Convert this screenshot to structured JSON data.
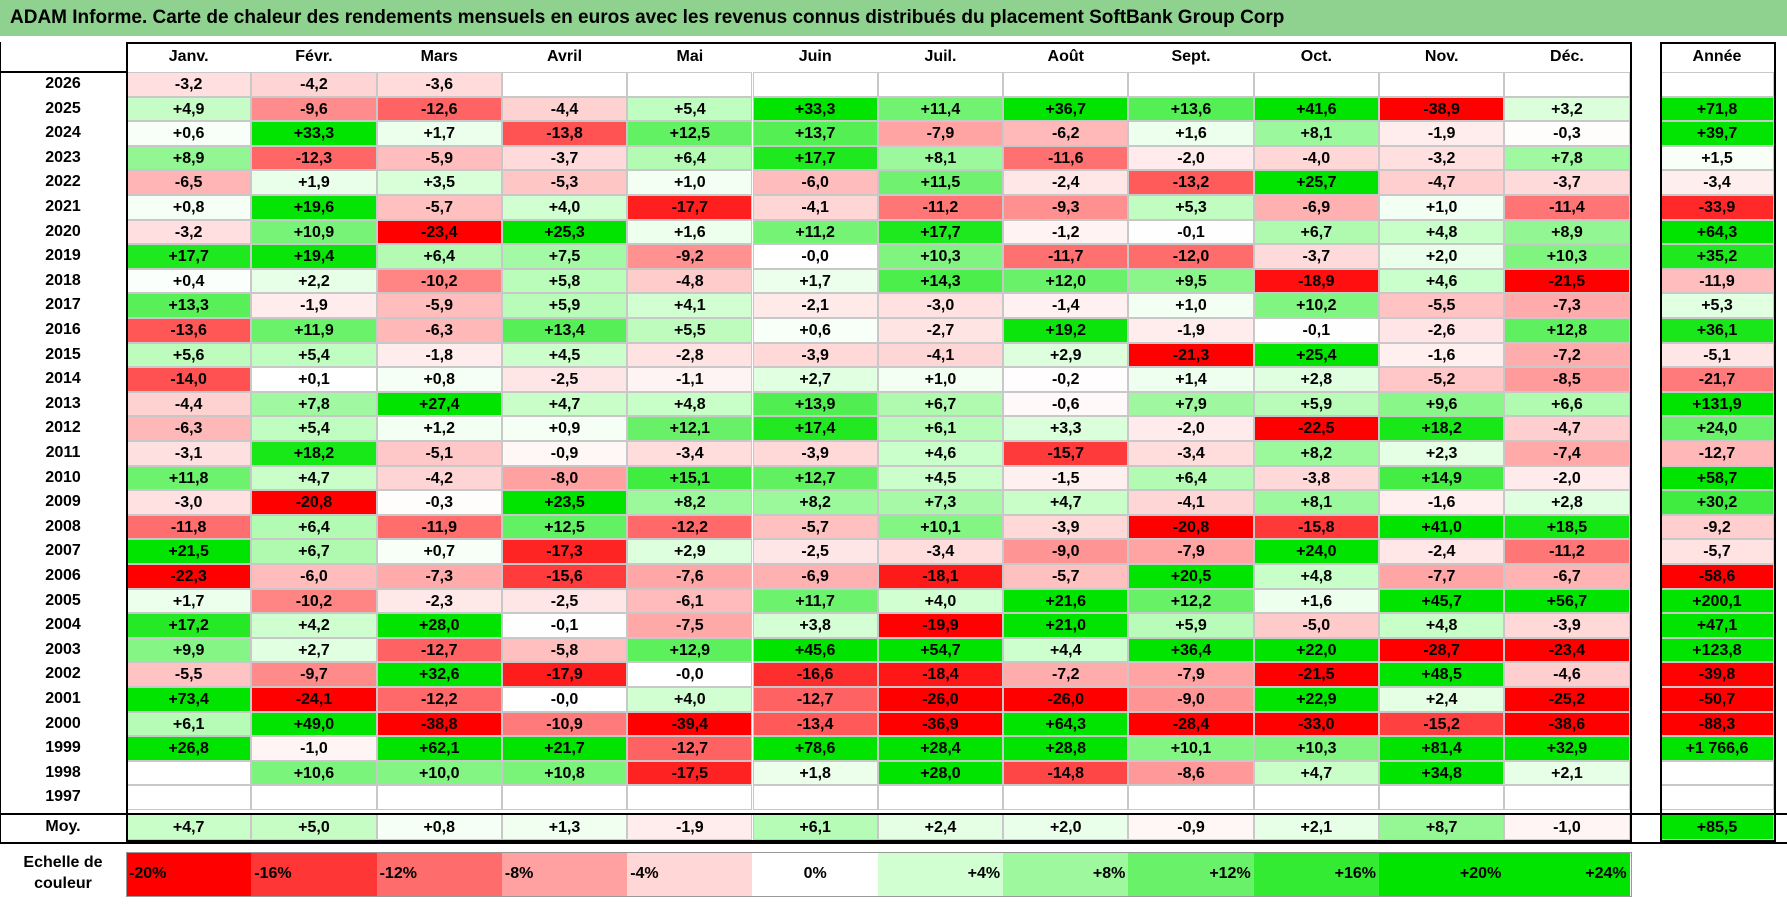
{
  "title": "ADAM Informe. Carte de chaleur des rendements mensuels en euros avec les revenus connus distribués du placement SoftBank Group Corp",
  "colors": {
    "title_bg": "#8fd18f",
    "neg_strong": "#ff0000",
    "pos_strong": "#00e000",
    "neutral": "#ffffff"
  },
  "chart_data": {
    "type": "heatmap",
    "month_labels": [
      "Janv.",
      "Févr.",
      "Mars",
      "Avril",
      "Mai",
      "Juin",
      "Juil.",
      "Août",
      "Sept.",
      "Oct.",
      "Nov.",
      "Déc."
    ],
    "year_column_label": "Année",
    "average_row_label": "Moy.",
    "rows": [
      {
        "year": "2026",
        "months": [
          "-3,2",
          "-4,2",
          "-3,6",
          "",
          "",
          "",
          "",
          "",
          "",
          "",
          "",
          ""
        ],
        "annual": ""
      },
      {
        "year": "2025",
        "months": [
          "+4,9",
          "-9,6",
          "-12,6",
          "-4,4",
          "+5,4",
          "+33,3",
          "+11,4",
          "+36,7",
          "+13,6",
          "+41,6",
          "-38,9",
          "+3,2"
        ],
        "annual": "+71,8"
      },
      {
        "year": "2024",
        "months": [
          "+0,6",
          "+33,3",
          "+1,7",
          "-13,8",
          "+12,5",
          "+13,7",
          "-7,9",
          "-6,2",
          "+1,6",
          "+8,1",
          "-1,9",
          "-0,3"
        ],
        "annual": "+39,7"
      },
      {
        "year": "2023",
        "months": [
          "+8,9",
          "-12,3",
          "-5,9",
          "-3,7",
          "+6,4",
          "+17,7",
          "+8,1",
          "-11,6",
          "-2,0",
          "-4,0",
          "-3,2",
          "+7,8"
        ],
        "annual": "+1,5"
      },
      {
        "year": "2022",
        "months": [
          "-6,5",
          "+1,9",
          "+3,5",
          "-5,3",
          "+1,0",
          "-6,0",
          "+11,5",
          "-2,4",
          "-13,2",
          "+25,7",
          "-4,7",
          "-3,7"
        ],
        "annual": "-3,4"
      },
      {
        "year": "2021",
        "months": [
          "+0,8",
          "+19,6",
          "-5,7",
          "+4,0",
          "-17,7",
          "-4,1",
          "-11,2",
          "-9,3",
          "+5,3",
          "-6,9",
          "+1,0",
          "-11,4"
        ],
        "annual": "-33,9"
      },
      {
        "year": "2020",
        "months": [
          "-3,2",
          "+10,9",
          "-23,4",
          "+25,3",
          "+1,6",
          "+11,2",
          "+17,7",
          "-1,2",
          "-0,1",
          "+6,7",
          "+4,8",
          "+8,9"
        ],
        "annual": "+64,3"
      },
      {
        "year": "2019",
        "months": [
          "+17,7",
          "+19,4",
          "+6,4",
          "+7,5",
          "-9,2",
          "-0,0",
          "+10,3",
          "-11,7",
          "-12,0",
          "-3,7",
          "+2,0",
          "+10,3"
        ],
        "annual": "+35,2"
      },
      {
        "year": "2018",
        "months": [
          "+0,4",
          "+2,2",
          "-10,2",
          "+5,8",
          "-4,8",
          "+1,7",
          "+14,3",
          "+12,0",
          "+9,5",
          "-18,9",
          "+4,6",
          "-21,5"
        ],
        "annual": "-11,9"
      },
      {
        "year": "2017",
        "months": [
          "+13,3",
          "-1,9",
          "-5,9",
          "+5,9",
          "+4,1",
          "-2,1",
          "-3,0",
          "-1,4",
          "+1,0",
          "+10,2",
          "-5,5",
          "-7,3"
        ],
        "annual": "+5,3"
      },
      {
        "year": "2016",
        "months": [
          "-13,6",
          "+11,9",
          "-6,3",
          "+13,4",
          "+5,5",
          "+0,6",
          "-2,7",
          "+19,2",
          "-1,9",
          "-0,1",
          "-2,6",
          "+12,8"
        ],
        "annual": "+36,1"
      },
      {
        "year": "2015",
        "months": [
          "+5,6",
          "+5,4",
          "-1,8",
          "+4,5",
          "-2,8",
          "-3,9",
          "-4,1",
          "+2,9",
          "-21,3",
          "+25,4",
          "-1,6",
          "-7,2"
        ],
        "annual": "-5,1"
      },
      {
        "year": "2014",
        "months": [
          "-14,0",
          "+0,1",
          "+0,8",
          "-2,5",
          "-1,1",
          "+2,7",
          "+1,0",
          "-0,2",
          "+1,4",
          "+2,8",
          "-5,2",
          "-8,5"
        ],
        "annual": "-21,7"
      },
      {
        "year": "2013",
        "months": [
          "-4,4",
          "+7,8",
          "+27,4",
          "+4,7",
          "+4,8",
          "+13,9",
          "+6,7",
          "-0,6",
          "+7,9",
          "+5,9",
          "+9,6",
          "+6,6"
        ],
        "annual": "+131,9"
      },
      {
        "year": "2012",
        "months": [
          "-6,3",
          "+5,4",
          "+1,2",
          "+0,9",
          "+12,1",
          "+17,4",
          "+6,1",
          "+3,3",
          "-2,0",
          "-22,5",
          "+18,2",
          "-4,7"
        ],
        "annual": "+24,0"
      },
      {
        "year": "2011",
        "months": [
          "-3,1",
          "+18,2",
          "-5,1",
          "-0,9",
          "-3,4",
          "-3,9",
          "+4,6",
          "-15,7",
          "-3,4",
          "+8,2",
          "+2,3",
          "-7,4"
        ],
        "annual": "-12,7"
      },
      {
        "year": "2010",
        "months": [
          "+11,8",
          "+4,7",
          "-4,2",
          "-8,0",
          "+15,1",
          "+12,7",
          "+4,5",
          "-1,5",
          "+6,4",
          "-3,8",
          "+14,9",
          "-2,0"
        ],
        "annual": "+58,7"
      },
      {
        "year": "2009",
        "months": [
          "-3,0",
          "-20,8",
          "-0,3",
          "+23,5",
          "+8,2",
          "+8,2",
          "+7,3",
          "+4,7",
          "-4,1",
          "+8,1",
          "-1,6",
          "+2,8"
        ],
        "annual": "+30,2"
      },
      {
        "year": "2008",
        "months": [
          "-11,8",
          "+6,4",
          "-11,9",
          "+12,5",
          "-12,2",
          "-5,7",
          "+10,1",
          "-3,9",
          "-20,8",
          "-15,8",
          "+41,0",
          "+18,5"
        ],
        "annual": "-9,2"
      },
      {
        "year": "2007",
        "months": [
          "+21,5",
          "+6,7",
          "+0,7",
          "-17,3",
          "+2,9",
          "-2,5",
          "-3,4",
          "-9,0",
          "-7,9",
          "+24,0",
          "-2,4",
          "-11,2"
        ],
        "annual": "-5,7"
      },
      {
        "year": "2006",
        "months": [
          "-22,3",
          "-6,0",
          "-7,3",
          "-15,6",
          "-7,6",
          "-6,9",
          "-18,1",
          "-5,7",
          "+20,5",
          "+4,8",
          "-7,7",
          "-6,7"
        ],
        "annual": "-58,6"
      },
      {
        "year": "2005",
        "months": [
          "+1,7",
          "-10,2",
          "-2,3",
          "-2,5",
          "-6,1",
          "+11,7",
          "+4,0",
          "+21,6",
          "+12,2",
          "+1,6",
          "+45,7",
          "+56,7"
        ],
        "annual": "+200,1"
      },
      {
        "year": "2004",
        "months": [
          "+17,2",
          "+4,2",
          "+28,0",
          "-0,1",
          "-7,5",
          "+3,8",
          "-19,9",
          "+21,0",
          "+5,9",
          "-5,0",
          "+4,8",
          "-3,9"
        ],
        "annual": "+47,1"
      },
      {
        "year": "2003",
        "months": [
          "+9,9",
          "+2,7",
          "-12,7",
          "-5,8",
          "+12,9",
          "+45,6",
          "+54,7",
          "+4,4",
          "+36,4",
          "+22,0",
          "-28,7",
          "-23,4"
        ],
        "annual": "+123,8"
      },
      {
        "year": "2002",
        "months": [
          "-5,5",
          "-9,7",
          "+32,6",
          "-17,9",
          "-0,0",
          "-16,6",
          "-18,4",
          "-7,2",
          "-7,9",
          "-21,5",
          "+48,5",
          "-4,6"
        ],
        "annual": "-39,8"
      },
      {
        "year": "2001",
        "months": [
          "+73,4",
          "-24,1",
          "-12,2",
          "-0,0",
          "+4,0",
          "-12,7",
          "-26,0",
          "-26,0",
          "-9,0",
          "+22,9",
          "+2,4",
          "-25,2"
        ],
        "annual": "-50,7"
      },
      {
        "year": "2000",
        "months": [
          "+6,1",
          "+49,0",
          "-38,8",
          "-10,9",
          "-39,4",
          "-13,4",
          "-36,9",
          "+64,3",
          "-28,4",
          "-33,0",
          "-15,2",
          "-38,6"
        ],
        "annual": "-88,3"
      },
      {
        "year": "1999",
        "months": [
          "+26,8",
          "-1,0",
          "+62,1",
          "+21,7",
          "-12,7",
          "+78,6",
          "+28,4",
          "+28,8",
          "+10,1",
          "+10,3",
          "+81,4",
          "+32,9"
        ],
        "annual": "+1 766,6"
      },
      {
        "year": "1998",
        "months": [
          "",
          "+10,6",
          "+10,0",
          "+10,8",
          "-17,5",
          "+1,8",
          "+28,0",
          "-14,8",
          "-8,6",
          "+4,7",
          "+34,8",
          "+2,1"
        ],
        "annual": ""
      },
      {
        "year": "1997",
        "months": [
          "",
          "",
          "",
          "",
          "",
          "",
          "",
          "",
          "",
          "",
          "",
          ""
        ],
        "annual": ""
      }
    ],
    "average": {
      "months": [
        "+4,7",
        "+5,0",
        "+0,8",
        "+1,3",
        "-1,9",
        "+6,1",
        "+2,4",
        "+2,0",
        "-0,9",
        "+2,1",
        "+8,7",
        "-1,0"
      ],
      "annual": "+85,5"
    },
    "scale": {
      "label": "Echelle de couleur",
      "steps": [
        "-20%",
        "-16%",
        "-12%",
        "-8%",
        "-4%",
        "0%",
        "+4%",
        "+8%",
        "+12%",
        "+16%",
        "+20%",
        "+24%"
      ]
    }
  }
}
